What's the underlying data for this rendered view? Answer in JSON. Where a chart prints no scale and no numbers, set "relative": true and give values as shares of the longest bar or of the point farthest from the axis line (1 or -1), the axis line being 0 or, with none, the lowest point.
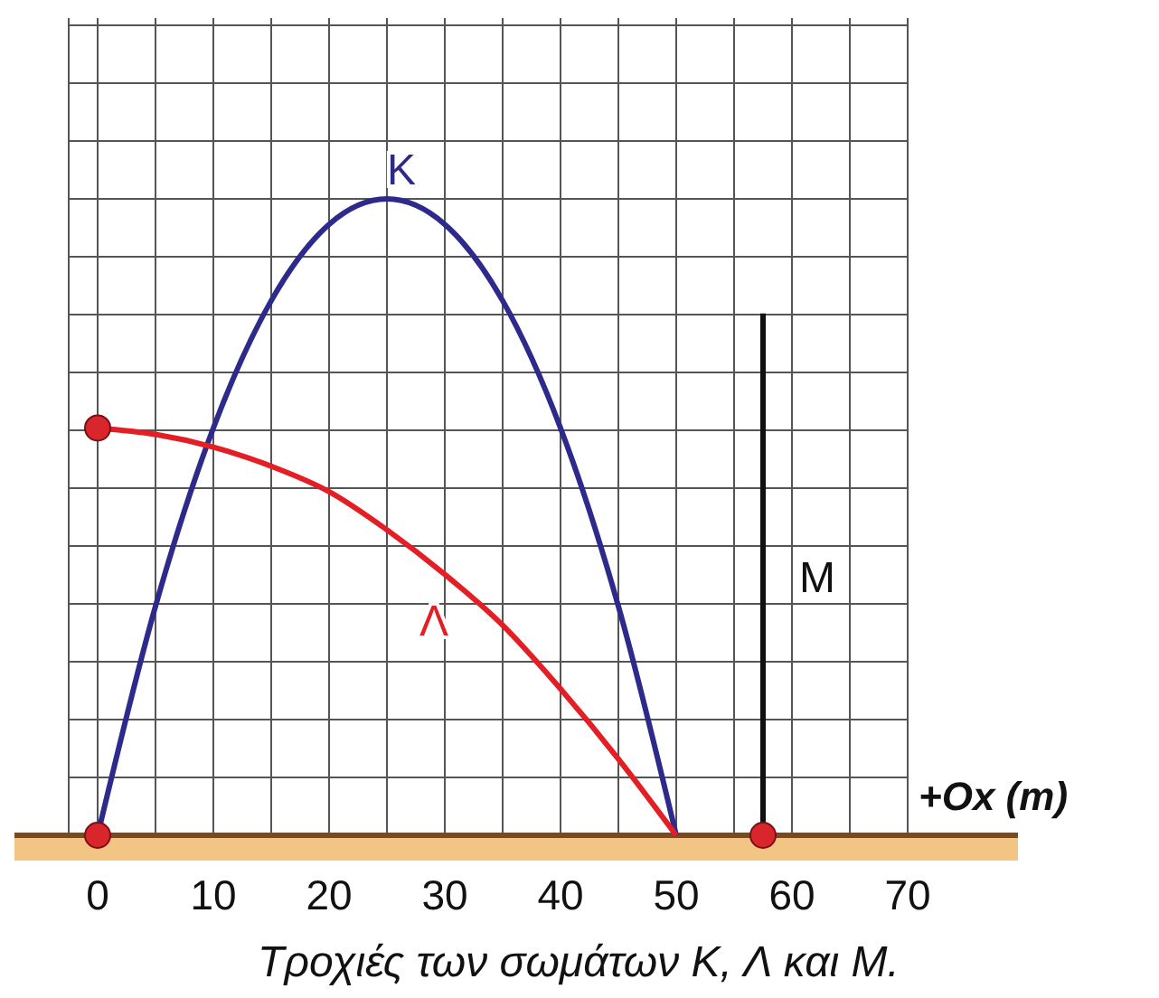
{
  "chart_data": {
    "type": "line",
    "relative": true,
    "xlabel": "+Ox (m)",
    "annotations": [
      "Τροχιές των σωμάτων Κ, Λ και Μ."
    ],
    "xlim": [
      -2.5,
      70
    ],
    "xticks": [
      0,
      {
        "value": 5,
        "label": null
      },
      10,
      {
        "value": 15,
        "label": null
      },
      20,
      {
        "value": 25,
        "label": null
      },
      30,
      {
        "value": 35,
        "label": null
      },
      40,
      {
        "value": 45,
        "label": null
      },
      50,
      {
        "value": 55,
        "label": null
      },
      60,
      {
        "value": 65,
        "label": null
      },
      70
    ],
    "grid": true,
    "line_style": "solid",
    "series": [
      {
        "name": "Κ",
        "color": "#2e2a8c",
        "x": [
          0,
          5,
          10,
          15,
          20,
          25,
          30,
          35,
          40,
          45,
          50
        ],
        "values": [
          0,
          0.36,
          0.64,
          0.84,
          0.96,
          1,
          0.96,
          0.84,
          0.64,
          0.36,
          0
        ]
      },
      {
        "name": "Λ",
        "color": "#e31e24",
        "x": [
          0,
          5,
          10,
          15,
          20,
          25,
          30,
          35,
          40,
          45,
          50
        ],
        "values": [
          0.64,
          0.63,
          0.61,
          0.58,
          0.54,
          0.48,
          0.41,
          0.33,
          0.23,
          0.12,
          0
        ]
      },
      {
        "name": "Μ",
        "color": "#111111",
        "x": [
          57.5,
          57.5
        ],
        "values": [
          0,
          0.82
        ]
      },
      {
        "type": "scatter",
        "marker": "circle",
        "color": "#d9262c",
        "x": [
          0,
          0,
          57.5
        ],
        "values": [
          0,
          0.64,
          0
        ]
      }
    ]
  }
}
